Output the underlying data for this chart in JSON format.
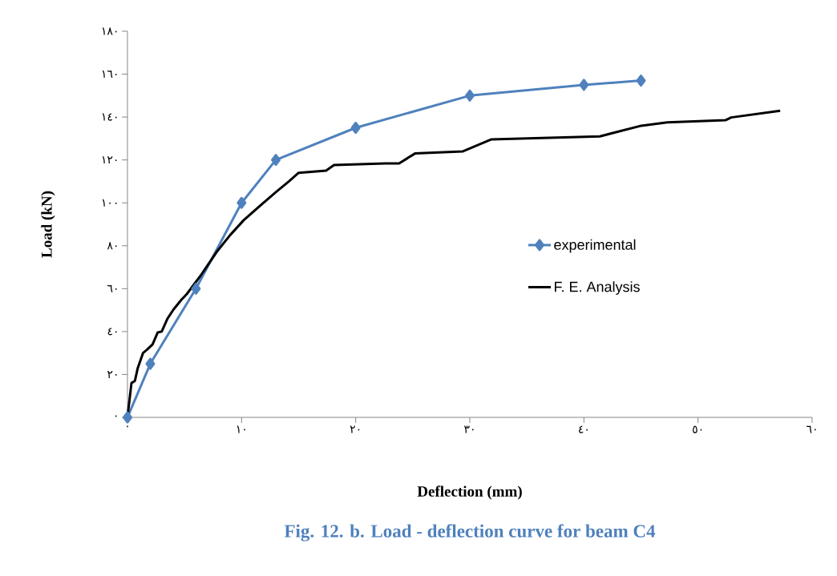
{
  "chart_data": {
    "type": "line",
    "xlabel": "Deflection (mm)",
    "ylabel": "Load (kN)",
    "annotations": [
      "Fig. 12. b. Load - deflection curve for beam C4"
    ],
    "xlim": [
      0,
      60
    ],
    "ylim": [
      0,
      180
    ],
    "xticks": [
      {
        "value": 0,
        "label": "٠"
      },
      {
        "value": 10,
        "label": "١٠"
      },
      {
        "value": 20,
        "label": "٢٠"
      },
      {
        "value": 30,
        "label": "٣٠"
      },
      {
        "value": 40,
        "label": "٤٠"
      },
      {
        "value": 50,
        "label": "٥٠"
      },
      {
        "value": 60,
        "label": "٦٠"
      }
    ],
    "yticks": [
      {
        "value": 0,
        "label": "٠"
      },
      {
        "value": 20,
        "label": "٢٠"
      },
      {
        "value": 40,
        "label": "٤٠"
      },
      {
        "value": 60,
        "label": "٦٠"
      },
      {
        "value": 80,
        "label": "٨٠"
      },
      {
        "value": 100,
        "label": "١٠٠"
      },
      {
        "value": 120,
        "label": "١٢٠"
      },
      {
        "value": 140,
        "label": "١٤٠"
      },
      {
        "value": 160,
        "label": "١٦٠"
      },
      {
        "value": 180,
        "label": "١٨٠"
      }
    ],
    "grid": false,
    "legend": "right",
    "series": [
      {
        "name": "experimental",
        "color": "#4f81bd",
        "marker": "diamond",
        "x": [
          0,
          2,
          6,
          10,
          13,
          20,
          30,
          40,
          45
        ],
        "values": [
          0,
          25,
          60,
          100,
          120,
          135,
          150,
          155,
          157
        ]
      },
      {
        "name": "F. E. Analysis",
        "color": "#000000",
        "marker": "none",
        "x": [
          0,
          0.35,
          0.65,
          0.9,
          1.36,
          1.7,
          2.2,
          2.65,
          3.0,
          3.5,
          4.05,
          4.75,
          5.2,
          6.4,
          7.8,
          9.0,
          10.2,
          11.8,
          13,
          14.15,
          15,
          17.4,
          18.1,
          22.6,
          23.8,
          25.2,
          29.4,
          31.9,
          41.4,
          44.9,
          47.3,
          52.4,
          52.9,
          57.2
        ],
        "values": [
          0,
          16,
          17,
          23,
          30,
          31.5,
          34,
          39.6,
          40,
          46,
          50.4,
          55,
          57.5,
          66,
          77,
          85,
          92,
          99.5,
          105,
          110,
          114,
          115,
          117.6,
          118.4,
          118.4,
          123,
          124,
          129.6,
          131,
          135.8,
          137.5,
          138.5,
          139.8,
          142.9
        ]
      }
    ]
  }
}
